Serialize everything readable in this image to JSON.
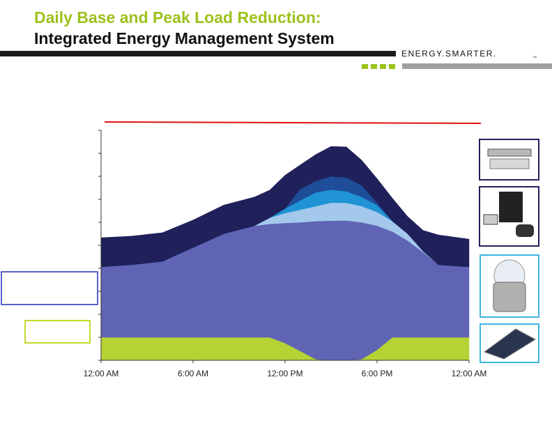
{
  "header": {
    "title_line1": "Daily Base and Peak Load Reduction:",
    "title_line2": "Integrated Energy Management System",
    "logo": "ENERGY.SMARTER.",
    "logo_mark": "TM"
  },
  "chart_data": {
    "type": "stacked_area",
    "x": [
      0,
      2,
      4,
      6,
      8,
      10,
      11,
      12,
      13,
      14,
      15,
      16,
      17,
      18,
      19,
      20,
      21,
      22,
      24
    ],
    "xlim": [
      0,
      24
    ],
    "xticks": [
      {
        "value": 0,
        "label": "12:00 AM"
      },
      {
        "value": 6,
        "label": "6:00 AM"
      },
      {
        "value": 12,
        "label": "12:00 PM"
      },
      {
        "value": 18,
        "label": "6:00 PM"
      },
      {
        "value": 24,
        "label": "12:00 AM"
      }
    ],
    "ylim": [
      0,
      10
    ],
    "yticks": [
      0,
      1,
      2,
      3,
      4,
      5,
      6,
      7,
      8,
      9,
      10
    ],
    "series": [
      {
        "color": "#b5d334",
        "values": [
          1,
          1,
          1,
          1,
          1,
          1,
          1,
          0.75,
          0.4,
          0.05,
          0,
          0,
          0.05,
          0.45,
          1,
          1,
          1,
          1,
          1
        ]
      },
      {
        "color": "#5f64b4",
        "values": [
          3.06,
          3.15,
          3.3,
          3.9,
          4.5,
          4.85,
          4.93,
          5.22,
          5.6,
          6.0,
          6.07,
          6.08,
          5.95,
          5.4,
          4.6,
          4.2,
          3.7,
          3.15,
          3.06
        ]
      },
      {
        "color": "#a3c8ec",
        "values": [
          0,
          0,
          0,
          0,
          0,
          0,
          0.27,
          0.43,
          0.55,
          0.65,
          0.78,
          0.77,
          0.7,
          0.6,
          0.45,
          0.3,
          0.05,
          0,
          0
        ]
      },
      {
        "color": "#1f93d4",
        "values": [
          0,
          0,
          0,
          0,
          0,
          0,
          0,
          0.2,
          0.4,
          0.6,
          0.57,
          0.5,
          0.4,
          0.3,
          0,
          0,
          0,
          0,
          0
        ]
      },
      {
        "color": "#1e4d9a",
        "values": [
          0,
          0,
          0,
          0,
          0,
          0,
          0,
          0,
          0.5,
          0.5,
          0.58,
          0.6,
          0.5,
          0.1,
          0,
          0,
          0,
          0,
          0
        ]
      },
      {
        "color": "#20205a",
        "values": [
          1.27,
          1.25,
          1.25,
          1.2,
          1.25,
          1.25,
          1.2,
          1.45,
          1.05,
          1.15,
          1.3,
          1.33,
          1.1,
          1.05,
          1.0,
          0.75,
          0.9,
          1.3,
          1.21
        ]
      }
    ]
  }
}
